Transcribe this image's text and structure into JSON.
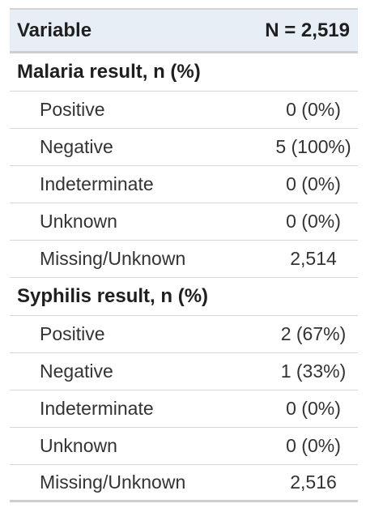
{
  "header": {
    "variable": "Variable",
    "n_label": "N = 2,519"
  },
  "groups": [
    {
      "title": "Malaria result, n (%)",
      "rows": [
        {
          "label": "Positive",
          "value": "0 (0%)"
        },
        {
          "label": "Negative",
          "value": "5 (100%)"
        },
        {
          "label": "Indeterminate",
          "value": "0 (0%)"
        },
        {
          "label": "Unknown",
          "value": "0 (0%)"
        },
        {
          "label": "Missing/Unknown",
          "value": "2,514"
        }
      ]
    },
    {
      "title": "Syphilis result, n (%)",
      "rows": [
        {
          "label": "Positive",
          "value": "2 (67%)"
        },
        {
          "label": "Negative",
          "value": "1 (33%)"
        },
        {
          "label": "Indeterminate",
          "value": "0 (0%)"
        },
        {
          "label": "Unknown",
          "value": "0 (0%)"
        },
        {
          "label": "Missing/Unknown",
          "value": "2,516"
        }
      ]
    }
  ]
}
